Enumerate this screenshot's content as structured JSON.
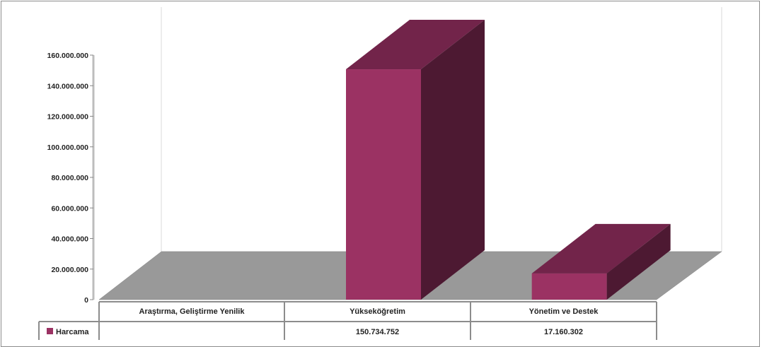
{
  "chart_data": {
    "type": "bar",
    "categories": [
      "Araştırma, Geliştirme Yenilik",
      "Yükseköğretim",
      "Yönetim ve Destek"
    ],
    "series": [
      {
        "name": "Harcama",
        "values": [
          0,
          150734752,
          17160302
        ],
        "labels": [
          "",
          "150.734.752",
          "17.160.302"
        ],
        "color": "#9b3263"
      }
    ],
    "y_ticks": [
      "0",
      "20.000.000",
      "40.000.000",
      "60.000.000",
      "80.000.000",
      "100.000.000",
      "120.000.000",
      "140.000.000",
      "160.000.000"
    ],
    "ylim": [
      0,
      160000000
    ],
    "three_d": true,
    "data_table": true,
    "colors": {
      "bar_front": "#9b3263",
      "bar_top": "#72244a",
      "bar_side": "#4d1932",
      "floor": "#999999",
      "wall_line": "#d9d9d9",
      "table_line": "#8c8c8c"
    }
  }
}
